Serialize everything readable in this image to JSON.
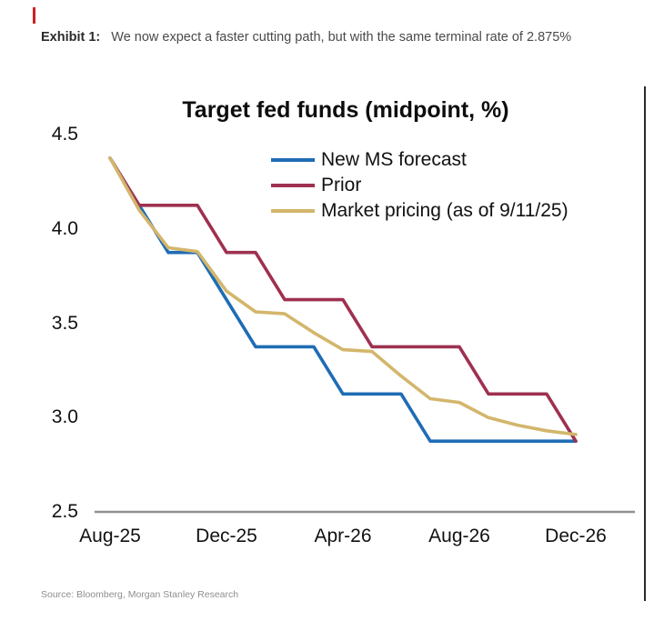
{
  "page": {
    "caption_label": "Exhibit 1:",
    "caption_text": "We now expect a faster cutting path, but with the same terminal rate of 2.875%",
    "source": "Source: Bloomberg, Morgan Stanley Research"
  },
  "chart_data": {
    "type": "line",
    "title": "Target fed funds (midpoint, %)",
    "x": [
      "Aug-25",
      "Sep-25",
      "Oct-25",
      "Nov-25",
      "Dec-25",
      "Jan-26",
      "Feb-26",
      "Mar-26",
      "Apr-26",
      "May-26",
      "Jun-26",
      "Jul-26",
      "Aug-26",
      "Sep-26",
      "Oct-26",
      "Nov-26",
      "Dec-26"
    ],
    "x_tick_labels": [
      "Aug-25",
      "Dec-25",
      "Apr-26",
      "Aug-26",
      "Dec-26"
    ],
    "y_ticks": [
      4.5,
      4.0,
      3.5,
      3.0,
      2.5
    ],
    "ylim": [
      2.5,
      4.5
    ],
    "grid": false,
    "legend_position": "top-center-inside",
    "axis_color": "#909090",
    "series": [
      {
        "name": "New MS forecast",
        "color": "#1f6cb5",
        "values": [
          4.375,
          4.125,
          3.875,
          3.875,
          3.625,
          3.375,
          3.375,
          3.375,
          3.125,
          3.125,
          3.125,
          2.875,
          2.875,
          2.875,
          2.875,
          2.875,
          2.875
        ]
      },
      {
        "name": "Prior",
        "color": "#9e3150",
        "values": [
          4.375,
          4.125,
          4.125,
          4.125,
          3.875,
          3.875,
          3.625,
          3.625,
          3.625,
          3.375,
          3.375,
          3.375,
          3.375,
          3.125,
          3.125,
          3.125,
          2.875
        ]
      },
      {
        "name": "Market pricing (as of 9/11/25)",
        "color": "#d3b66b",
        "values": [
          4.375,
          4.1,
          3.9,
          3.88,
          3.67,
          3.56,
          3.55,
          3.45,
          3.36,
          3.35,
          3.22,
          3.1,
          3.08,
          3.0,
          2.96,
          2.93,
          2.91
        ]
      }
    ]
  }
}
